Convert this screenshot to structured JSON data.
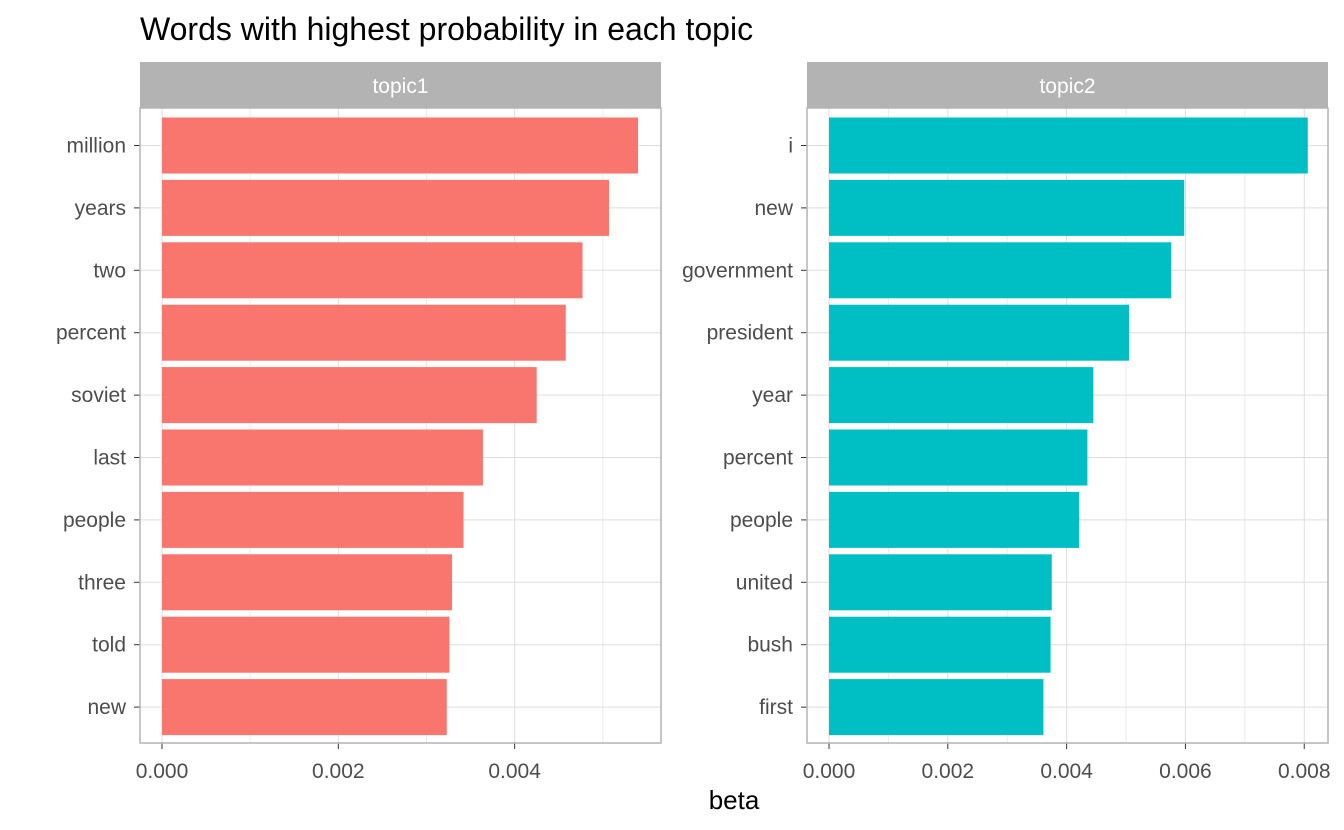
{
  "chart_data": {
    "type": "bar",
    "title": "Words with highest probability in each topic",
    "xlabel": "beta",
    "ylabel": "",
    "orientation": "horizontal",
    "grid": true,
    "legend": "none",
    "panels": [
      {
        "name": "topic1",
        "color": "#F8766D",
        "xlim": [
          0,
          0.00566
        ],
        "xticks": [
          0.0,
          0.002,
          0.004
        ],
        "xtick_labels": [
          "0.000",
          "0.002",
          "0.004"
        ],
        "categories": [
          "million",
          "years",
          "two",
          "percent",
          "soviet",
          "last",
          "people",
          "three",
          "told",
          "new"
        ],
        "values": [
          0.0054,
          0.00507,
          0.00477,
          0.00458,
          0.00425,
          0.00364,
          0.00342,
          0.00329,
          0.00326,
          0.00323
        ]
      },
      {
        "name": "topic2",
        "color": "#00BFC4",
        "xlim": [
          0,
          0.0084
        ],
        "xticks": [
          0.0,
          0.002,
          0.004,
          0.006,
          0.008
        ],
        "xtick_labels": [
          "0.000",
          "0.002",
          "0.004",
          "0.006",
          "0.008"
        ],
        "categories": [
          "i",
          "new",
          "government",
          "president",
          "year",
          "percent",
          "people",
          "united",
          "bush",
          "first"
        ],
        "values": [
          0.00806,
          0.00598,
          0.00576,
          0.00505,
          0.00445,
          0.00435,
          0.00421,
          0.00375,
          0.00373,
          0.00361
        ]
      }
    ]
  }
}
